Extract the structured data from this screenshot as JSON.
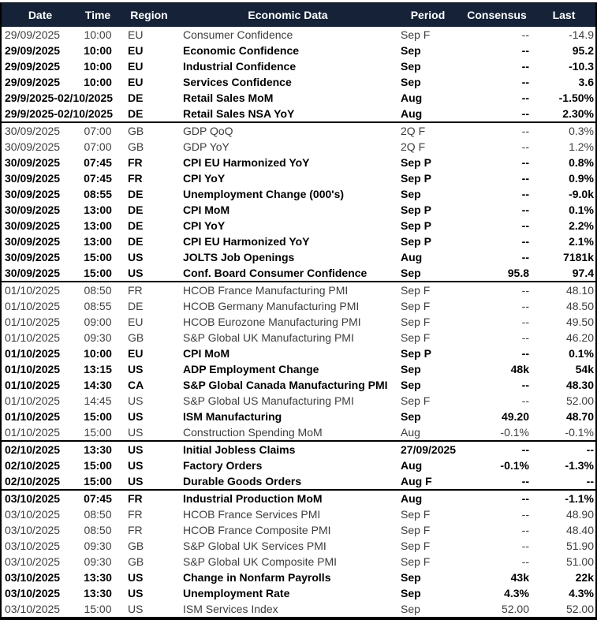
{
  "colors": {
    "header_bg": "#152238",
    "header_text": "#ffffff",
    "normal_row_text": "#3d3d3d",
    "bold_row_text": "#000000",
    "border": "#000000"
  },
  "table": {
    "headers": [
      "Date",
      "Time",
      "Region",
      "Economic Data",
      "Period",
      "Consensus",
      "Last"
    ],
    "rows": [
      {
        "date": "29/09/2025",
        "time": "10:00",
        "region": "EU",
        "event": "Consumer Confidence",
        "period": "Sep F",
        "consensus": "--",
        "last": "-14.9",
        "bold": false,
        "sep": false
      },
      {
        "date": "29/09/2025",
        "time": "10:00",
        "region": "EU",
        "event": "Economic Confidence",
        "period": "Sep",
        "consensus": "--",
        "last": "95.2",
        "bold": true,
        "sep": false
      },
      {
        "date": "29/09/2025",
        "time": "10:00",
        "region": "EU",
        "event": "Industrial Confidence",
        "period": "Sep",
        "consensus": "--",
        "last": "-10.3",
        "bold": true,
        "sep": false
      },
      {
        "date": "29/09/2025",
        "time": "10:00",
        "region": "EU",
        "event": "Services Confidence",
        "period": "Sep",
        "consensus": "--",
        "last": "3.6",
        "bold": true,
        "sep": false
      },
      {
        "date": "29/9/2025-02/10/2025",
        "time": "",
        "region": "DE",
        "event": "Retail Sales MoM",
        "period": "Aug",
        "consensus": "--",
        "last": "-1.50%",
        "bold": true,
        "sep": false
      },
      {
        "date": "29/9/2025-02/10/2025",
        "time": "",
        "region": "DE",
        "event": "Retail Sales NSA YoY",
        "period": "Aug",
        "consensus": "--",
        "last": "2.30%",
        "bold": true,
        "sep": false
      },
      {
        "date": "30/09/2025",
        "time": "07:00",
        "region": "GB",
        "event": "GDP QoQ",
        "period": "2Q F",
        "consensus": "--",
        "last": "0.3%",
        "bold": false,
        "sep": true
      },
      {
        "date": "30/09/2025",
        "time": "07:00",
        "region": "GB",
        "event": "GDP YoY",
        "period": "2Q F",
        "consensus": "--",
        "last": "1.2%",
        "bold": false,
        "sep": false
      },
      {
        "date": "30/09/2025",
        "time": "07:45",
        "region": "FR",
        "event": "CPI EU Harmonized YoY",
        "period": "Sep P",
        "consensus": "--",
        "last": "0.8%",
        "bold": true,
        "sep": false
      },
      {
        "date": "30/09/2025",
        "time": "07:45",
        "region": "FR",
        "event": "CPI YoY",
        "period": "Sep P",
        "consensus": "--",
        "last": "0.9%",
        "bold": true,
        "sep": false
      },
      {
        "date": "30/09/2025",
        "time": "08:55",
        "region": "DE",
        "event": "Unemployment Change (000's)",
        "period": "Sep",
        "consensus": "--",
        "last": "-9.0k",
        "bold": true,
        "sep": false
      },
      {
        "date": "30/09/2025",
        "time": "13:00",
        "region": "DE",
        "event": "CPI MoM",
        "period": "Sep P",
        "consensus": "--",
        "last": "0.1%",
        "bold": true,
        "sep": false
      },
      {
        "date": "30/09/2025",
        "time": "13:00",
        "region": "DE",
        "event": "CPI YoY",
        "period": "Sep P",
        "consensus": "--",
        "last": "2.2%",
        "bold": true,
        "sep": false
      },
      {
        "date": "30/09/2025",
        "time": "13:00",
        "region": "DE",
        "event": "CPI EU Harmonized YoY",
        "period": "Sep P",
        "consensus": "--",
        "last": "2.1%",
        "bold": true,
        "sep": false
      },
      {
        "date": "30/09/2025",
        "time": "15:00",
        "region": "US",
        "event": "JOLTS Job Openings",
        "period": "Aug",
        "consensus": "--",
        "last": "7181k",
        "bold": true,
        "sep": false
      },
      {
        "date": "30/09/2025",
        "time": "15:00",
        "region": "US",
        "event": "Conf. Board Consumer Confidence",
        "period": "Sep",
        "consensus": "95.8",
        "last": "97.4",
        "bold": true,
        "sep": false
      },
      {
        "date": "01/10/2025",
        "time": "08:50",
        "region": "FR",
        "event": "HCOB France Manufacturing PMI",
        "period": "Sep F",
        "consensus": "--",
        "last": "48.10",
        "bold": false,
        "sep": true
      },
      {
        "date": "01/10/2025",
        "time": "08:55",
        "region": "DE",
        "event": "HCOB Germany Manufacturing PMI",
        "period": "Sep F",
        "consensus": "--",
        "last": "48.50",
        "bold": false,
        "sep": false
      },
      {
        "date": "01/10/2025",
        "time": "09:00",
        "region": "EU",
        "event": "HCOB Eurozone Manufacturing PMI",
        "period": "Sep F",
        "consensus": "--",
        "last": "49.50",
        "bold": false,
        "sep": false
      },
      {
        "date": "01/10/2025",
        "time": "09:30",
        "region": "GB",
        "event": "S&P Global UK Manufacturing PMI",
        "period": "Sep F",
        "consensus": "--",
        "last": "46.20",
        "bold": false,
        "sep": false
      },
      {
        "date": "01/10/2025",
        "time": "10:00",
        "region": "EU",
        "event": "CPI MoM",
        "period": "Sep P",
        "consensus": "--",
        "last": "0.1%",
        "bold": true,
        "sep": false
      },
      {
        "date": "01/10/2025",
        "time": "13:15",
        "region": "US",
        "event": "ADP Employment Change",
        "period": "Sep",
        "consensus": "48k",
        "last": "54k",
        "bold": true,
        "sep": false
      },
      {
        "date": "01/10/2025",
        "time": "14:30",
        "region": "CA",
        "event": "S&P Global Canada Manufacturing PMI",
        "period": "Sep",
        "consensus": "--",
        "last": "48.30",
        "bold": true,
        "sep": false
      },
      {
        "date": "01/10/2025",
        "time": "14:45",
        "region": "US",
        "event": "S&P Global US Manufacturing PMI",
        "period": "Sep F",
        "consensus": "--",
        "last": "52.00",
        "bold": false,
        "sep": false
      },
      {
        "date": "01/10/2025",
        "time": "15:00",
        "region": "US",
        "event": "ISM Manufacturing",
        "period": "Sep",
        "consensus": "49.20",
        "last": "48.70",
        "bold": true,
        "sep": false
      },
      {
        "date": "01/10/2025",
        "time": "15:00",
        "region": "US",
        "event": "Construction Spending MoM",
        "period": "Aug",
        "consensus": "-0.1%",
        "last": "-0.1%",
        "bold": false,
        "sep": false
      },
      {
        "date": "02/10/2025",
        "time": "13:30",
        "region": "US",
        "event": "Initial Jobless Claims",
        "period": "27/09/2025",
        "consensus": "--",
        "last": "--",
        "bold": true,
        "sep": true
      },
      {
        "date": "02/10/2025",
        "time": "15:00",
        "region": "US",
        "event": "Factory Orders",
        "period": "Aug",
        "consensus": "-0.1%",
        "last": "-1.3%",
        "bold": true,
        "sep": false
      },
      {
        "date": "02/10/2025",
        "time": "15:00",
        "region": "US",
        "event": "Durable Goods Orders",
        "period": "Aug F",
        "consensus": "--",
        "last": "--",
        "bold": true,
        "sep": false
      },
      {
        "date": "03/10/2025",
        "time": "07:45",
        "region": "FR",
        "event": "Industrial Production MoM",
        "period": "Aug",
        "consensus": "--",
        "last": "-1.1%",
        "bold": true,
        "sep": true
      },
      {
        "date": "03/10/2025",
        "time": "08:50",
        "region": "FR",
        "event": "HCOB France Services PMI",
        "period": "Sep F",
        "consensus": "--",
        "last": "48.90",
        "bold": false,
        "sep": false
      },
      {
        "date": "03/10/2025",
        "time": "08:50",
        "region": "FR",
        "event": "HCOB France Composite PMI",
        "period": "Sep F",
        "consensus": "--",
        "last": "48.40",
        "bold": false,
        "sep": false
      },
      {
        "date": "03/10/2025",
        "time": "09:30",
        "region": "GB",
        "event": "S&P Global UK Services PMI",
        "period": "Sep F",
        "consensus": "--",
        "last": "51.90",
        "bold": false,
        "sep": false
      },
      {
        "date": "03/10/2025",
        "time": "09:30",
        "region": "GB",
        "event": "S&P Global UK Composite PMI",
        "period": "Sep F",
        "consensus": "--",
        "last": "51.00",
        "bold": false,
        "sep": false
      },
      {
        "date": "03/10/2025",
        "time": "13:30",
        "region": "US",
        "event": "Change in Nonfarm Payrolls",
        "period": "Sep",
        "consensus": "43k",
        "last": "22k",
        "bold": true,
        "sep": false
      },
      {
        "date": "03/10/2025",
        "time": "13:30",
        "region": "US",
        "event": "Unemployment Rate",
        "period": "Sep",
        "consensus": "4.3%",
        "last": "4.3%",
        "bold": true,
        "sep": false
      },
      {
        "date": "03/10/2025",
        "time": "15:00",
        "region": "US",
        "event": "ISM Services Index",
        "period": "Sep",
        "consensus": "52.00",
        "last": "52.00",
        "bold": false,
        "sep": false
      }
    ]
  }
}
